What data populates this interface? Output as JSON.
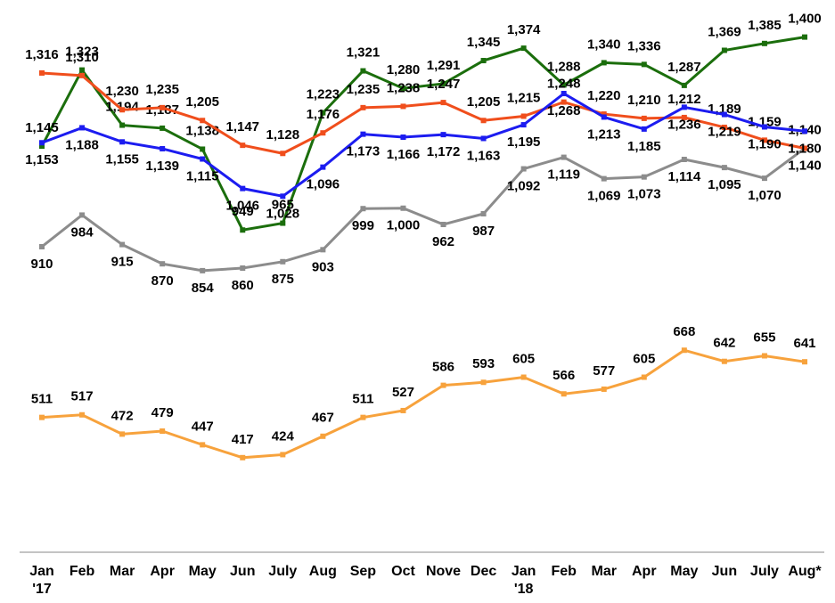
{
  "chart_data": {
    "type": "line",
    "categories": [
      "Jan '17",
      "Feb",
      "Mar",
      "Apr",
      "May",
      "Jun",
      "July",
      "Aug",
      "Sep",
      "Oct",
      "Nove",
      "Dec",
      "Jan '18",
      "Feb",
      "Mar",
      "Apr",
      "May",
      "Jun",
      "July",
      "Aug*"
    ],
    "ylim": [
      300,
      1420
    ],
    "series": [
      {
        "color": "#8c8c8c",
        "values": [
          910,
          984,
          915,
          870,
          854,
          860,
          875,
          903,
          999,
          1000,
          962,
          987,
          1092,
          1119,
          1069,
          1073,
          1114,
          1095,
          1070,
          1140
        ],
        "value_labels": [
          "910",
          "984",
          "915",
          "870",
          "854",
          "860",
          "875",
          "903",
          "999",
          "1,000",
          "962",
          "987",
          "1,092",
          "1,119",
          "1,069",
          "1,073",
          "1,114",
          "1,095",
          "1,070",
          "1,140"
        ]
      },
      {
        "color": "#1b6e0c",
        "values": [
          1145,
          1323,
          1194,
          1187,
          1138,
          949,
          965,
          1223,
          1321,
          1280,
          1291,
          1345,
          1374,
          1288,
          1340,
          1336,
          1287,
          1369,
          1385,
          1400
        ],
        "value_labels": [
          "1,145",
          "1,323",
          "1,194",
          "1,187",
          "1,138",
          "949",
          "965",
          "1,223",
          "1,321",
          "1,280",
          "1,291",
          "1,345",
          "1,374",
          "1,288",
          "1,340",
          "1,336",
          "1,287",
          "1,369",
          "1,385",
          "1,400"
        ]
      },
      {
        "color": "#f04e1c",
        "values": [
          1316,
          1310,
          1230,
          1235,
          1205,
          1147,
          1128,
          1176,
          1235,
          1238,
          1247,
          1205,
          1215,
          1248,
          1220,
          1210,
          1212,
          1189,
          1159,
          1140
        ],
        "value_labels": [
          "1,316",
          "1,310",
          "1,230",
          "1,235",
          "1,205",
          "1,147",
          "1,128",
          "1,176",
          "1,235",
          "1,238",
          "1,247",
          "1,205",
          "1,215",
          "1,248",
          "1,220",
          "1,210",
          "1,212",
          "1,189",
          "1,159",
          "1,140"
        ]
      },
      {
        "color": "#1c1cf0",
        "values": [
          1153,
          1188,
          1155,
          1139,
          1115,
          1046,
          1028,
          1096,
          1173,
          1166,
          1172,
          1163,
          1195,
          1268,
          1213,
          1185,
          1236,
          1219,
          1190,
          1180
        ],
        "value_labels": [
          "1,153",
          "1,188",
          "1,155",
          "1,139",
          "1,115",
          "1,046",
          "1,028",
          "1,096",
          "1,173",
          "1,166",
          "1,172",
          "1,163",
          "1,195",
          "1,268",
          "1,213",
          "1,185",
          "1,236",
          "1,219",
          "1,190",
          "1,180"
        ]
      },
      {
        "color": "#f7a23c",
        "values": [
          511,
          517,
          472,
          479,
          447,
          417,
          424,
          467,
          511,
          527,
          586,
          593,
          605,
          566,
          577,
          605,
          668,
          642,
          655,
          641
        ],
        "value_labels": [
          "511",
          "517",
          "472",
          "479",
          "447",
          "417",
          "424",
          "467",
          "511",
          "527",
          "586",
          "593",
          "605",
          "566",
          "577",
          "605",
          "668",
          "642",
          "655",
          "641"
        ]
      }
    ]
  }
}
